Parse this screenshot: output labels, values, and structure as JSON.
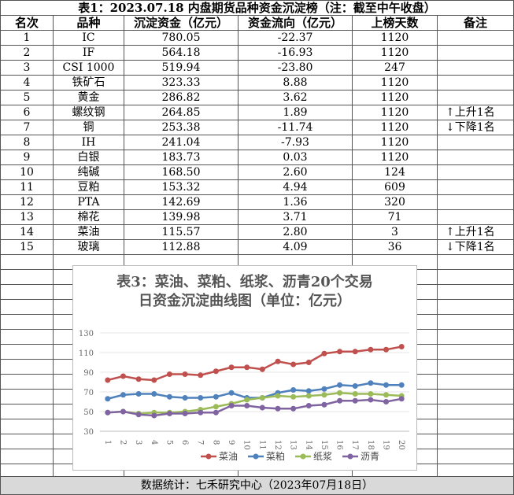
{
  "table": {
    "title": "表1：2023.07.18 内盘期货品种资金沉淀榜（注：截至中午收盘）",
    "header": [
      "名次",
      "品种",
      "沉淀资金（亿元）",
      "资金流向（亿元）",
      "上榜天数",
      "备注"
    ],
    "rows": [
      [
        "1",
        "IC",
        "780.05",
        "-22.37",
        "1120",
        null
      ],
      [
        "2",
        "IF",
        "564.18",
        "-16.93",
        "1120",
        null
      ],
      [
        "3",
        "CSI 1000",
        "519.94",
        "-23.80",
        "247",
        null
      ],
      [
        "4",
        "铁矿石",
        "323.33",
        "8.88",
        "1120",
        null
      ],
      [
        "5",
        "黄金",
        "286.82",
        "3.62",
        "1120",
        null
      ],
      [
        "6",
        "螺纹钢",
        "264.85",
        "1.89",
        "1120",
        "↑上升1名"
      ],
      [
        "7",
        "铜",
        "253.38",
        "-11.74",
        "1120",
        "↓下降1名"
      ],
      [
        "8",
        "IH",
        "241.04",
        "-7.93",
        "1120",
        null
      ],
      [
        "9",
        "白银",
        "183.73",
        "0.03",
        "1120",
        null
      ],
      [
        "10",
        "纯碱",
        "168.50",
        "2.60",
        "124",
        null
      ],
      [
        "11",
        "豆粕",
        "153.32",
        "4.94",
        "609",
        null
      ],
      [
        "12",
        "PTA",
        "142.69",
        "1.36",
        "320",
        null
      ],
      [
        "13",
        "棉花",
        "139.98",
        "3.71",
        "71",
        null
      ],
      [
        "14",
        "菜油",
        "115.57",
        "2.80",
        "3",
        "↑上升1名"
      ],
      [
        "15",
        "玻璃",
        "112.88",
        "4.09",
        "36",
        "↓下降1名"
      ]
    ]
  },
  "chart_data": {
    "type": "line",
    "title": [
      "表3：菜油、菜粕、纸浆、沥青20个交易",
      "日资金沉淀曲线图（单位：亿元）"
    ],
    "categories": [
      "1",
      "2",
      "3",
      "4",
      "5",
      "6",
      "7",
      "8",
      "9",
      "10",
      "11",
      "12",
      "13",
      "14",
      "15",
      "16",
      "17",
      "18",
      "19",
      "20"
    ],
    "series": [
      {
        "name": "菜油",
        "color": "#c0504d",
        "values": [
          82,
          86,
          83,
          82,
          88,
          88,
          87,
          91,
          95,
          95,
          93,
          101,
          98,
          100,
          109,
          111,
          111,
          113,
          113,
          116
        ]
      },
      {
        "name": "菜粕",
        "color": "#4f81bd",
        "values": [
          63,
          67,
          68,
          68,
          65,
          64,
          64,
          65,
          69,
          64,
          64,
          69,
          72,
          71,
          73,
          77,
          76,
          79,
          77,
          77
        ]
      },
      {
        "name": "纸浆",
        "color": "#9bbb59",
        "values": [
          49,
          50,
          48,
          49,
          49,
          50,
          52,
          55,
          58,
          62,
          64,
          66,
          65,
          66,
          67,
          69,
          68,
          68,
          67,
          66
        ]
      },
      {
        "name": "沥青",
        "color": "#8064a2",
        "values": [
          49,
          50,
          47,
          46,
          48,
          48,
          49,
          49,
          56,
          56,
          54,
          53,
          53,
          56,
          57,
          61,
          61,
          62,
          60,
          63
        ]
      }
    ],
    "ylim": [
      30,
      130
    ],
    "yticks": [
      30,
      50,
      70,
      90,
      110,
      130
    ],
    "grid": true
  },
  "footer": "数据统计：七禾研究中心（2023年07月18日）"
}
